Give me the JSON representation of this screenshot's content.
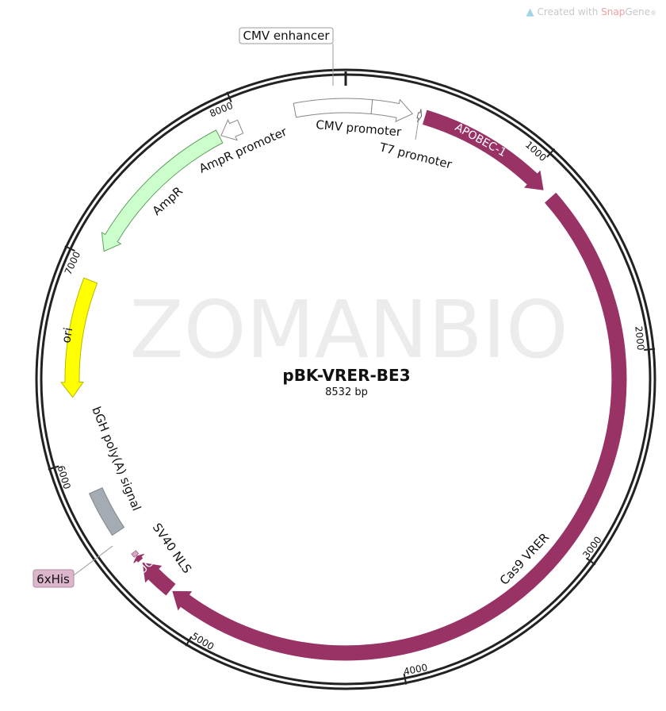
{
  "credit": {
    "prefix": "Created with ",
    "brand": "Snap",
    "suffix": "Gene",
    "mark": "®",
    "icon": "snapgene-logo-icon"
  },
  "watermark": "ZOMANBIO",
  "plasmid": {
    "name": "pBK-VRER-BE3",
    "length_label": "8532 bp",
    "length": 8532
  },
  "ticks": [
    {
      "bp": 1000,
      "label": "1000"
    },
    {
      "bp": 2000,
      "label": "2000"
    },
    {
      "bp": 3000,
      "label": "3000"
    },
    {
      "bp": 4000,
      "label": "4000"
    },
    {
      "bp": 5000,
      "label": "5000"
    },
    {
      "bp": 6000,
      "label": "6000"
    },
    {
      "bp": 7000,
      "label": "7000"
    },
    {
      "bp": 8000,
      "label": "8000"
    }
  ],
  "features": [
    {
      "name": "CMV enhancer",
      "start": 8278,
      "end": 130,
      "strand": 0,
      "fill": "#ffffff",
      "stroke": "#888888"
    },
    {
      "name": "CMV promoter",
      "start": 130,
      "end": 335,
      "strand": 1,
      "fill": "#ffffff",
      "stroke": "#888888"
    },
    {
      "name": "T7 promoter",
      "start": 362,
      "end": 381,
      "strand": 1,
      "fill": "#ffffff",
      "stroke": "#666666"
    },
    {
      "name": "APOBEC-1",
      "start": 400,
      "end": 1095,
      "strand": 1,
      "fill": "#993366",
      "stroke": "#993366"
    },
    {
      "name": "Cas9 VRER",
      "start": 1150,
      "end": 5195,
      "strand": 1,
      "fill": "#993366",
      "stroke": "#993366"
    },
    {
      "name": "UGI",
      "start": 5210,
      "end": 5400,
      "strand": 1,
      "fill": "#993366",
      "stroke": "#993366"
    },
    {
      "name": "SV40 NLS",
      "start": 5420,
      "end": 5445,
      "strand": 1,
      "fill": "#993366",
      "stroke": "#993366"
    },
    {
      "name": "6xHis",
      "start": 5450,
      "end": 5470,
      "strand": 0,
      "fill": "#d8a8c8",
      "stroke": "#b07090"
    },
    {
      "name": "bGH poly(A) signal",
      "start": 5600,
      "end": 5830,
      "strand": 0,
      "fill": "#a4abb3",
      "stroke": "#808890"
    },
    {
      "name": "ori",
      "start": 6310,
      "end": 6900,
      "strand": -1,
      "fill": "#ffff00",
      "stroke": "#b8b800"
    },
    {
      "name": "AmpR",
      "start": 7060,
      "end": 7880,
      "strand": -1,
      "fill": "#ccffcc",
      "stroke": "#60a060"
    },
    {
      "name": "AmpR promoter",
      "start": 7890,
      "end": 7995,
      "strand": -1,
      "fill": "#ffffff",
      "stroke": "#888888"
    }
  ]
}
